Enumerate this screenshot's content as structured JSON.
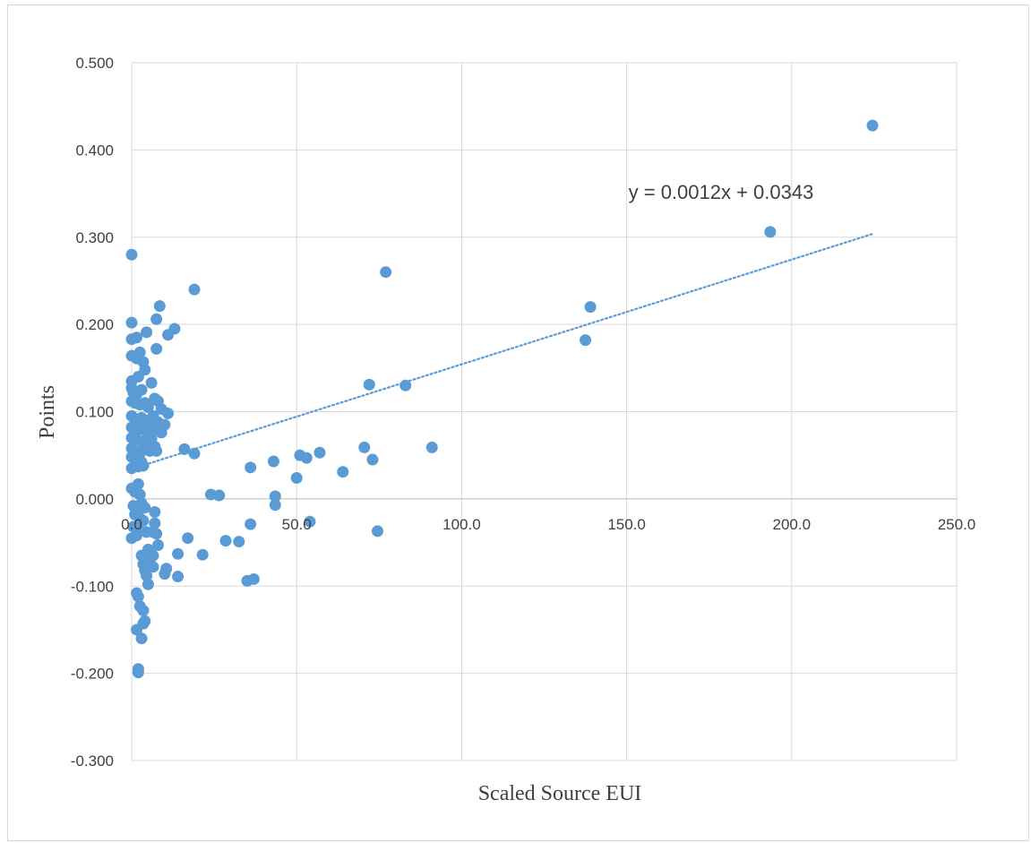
{
  "chart_data": {
    "type": "scatter",
    "title": "",
    "xlabel": "Scaled Source EUI",
    "ylabel": "Points",
    "xlim": [
      0,
      250
    ],
    "ylim": [
      -0.3,
      0.5
    ],
    "x_ticks": [
      0,
      50,
      100,
      150,
      200,
      250
    ],
    "x_tick_labels": [
      "0.0",
      "50.0",
      "100.0",
      "150.0",
      "200.0",
      "250.0"
    ],
    "y_ticks": [
      -0.3,
      -0.2,
      -0.1,
      0,
      0.1,
      0.2,
      0.3,
      0.4,
      0.5
    ],
    "y_tick_labels": [
      "-0.300",
      "-0.200",
      "-0.100",
      "0.000",
      "0.100",
      "0.200",
      "0.300",
      "0.400",
      "0.500"
    ],
    "grid": true,
    "legend": "none",
    "marker_color": "#5b9bd5",
    "trendline": {
      "type": "linear",
      "slope": 0.0012,
      "intercept": 0.0343,
      "x_range": [
        0,
        224.5
      ],
      "label": "y = 0.0012x + 0.0343",
      "style": "dotted",
      "color": "#5b9bd5"
    },
    "series": [
      {
        "points": [
          [
            224.5,
            0.428
          ],
          [
            193.5,
            0.306
          ],
          [
            139,
            0.22
          ],
          [
            137.5,
            0.182
          ],
          [
            77,
            0.26
          ],
          [
            72,
            0.131
          ],
          [
            83,
            0.13
          ],
          [
            91,
            0.059
          ],
          [
            70.5,
            0.059
          ],
          [
            73,
            0.045
          ],
          [
            57,
            0.053
          ],
          [
            53,
            0.047
          ],
          [
            51,
            0.05
          ],
          [
            50,
            0.024
          ],
          [
            64,
            0.031
          ],
          [
            43,
            0.043
          ],
          [
            36,
            0.036
          ],
          [
            43.5,
            0.003
          ],
          [
            43.5,
            -0.007
          ],
          [
            54,
            -0.026
          ],
          [
            74.5,
            -0.037
          ],
          [
            36,
            -0.029
          ],
          [
            32.5,
            -0.049
          ],
          [
            28.5,
            -0.048
          ],
          [
            17,
            -0.045
          ],
          [
            21.5,
            -0.064
          ],
          [
            14,
            -0.063
          ],
          [
            35,
            -0.094
          ],
          [
            37,
            -0.092
          ],
          [
            14,
            -0.089
          ],
          [
            10.5,
            -0.08
          ],
          [
            10,
            -0.086
          ],
          [
            24,
            0.005
          ],
          [
            26.5,
            0.004
          ],
          [
            19,
            0.052
          ],
          [
            16,
            0.057
          ],
          [
            19,
            0.24
          ],
          [
            13,
            0.195
          ],
          [
            11,
            0.188
          ],
          [
            8.5,
            0.221
          ],
          [
            7.5,
            0.206
          ],
          [
            7.5,
            0.172
          ],
          [
            4.5,
            0.191
          ],
          [
            3.5,
            0.157
          ],
          [
            4,
            0.148
          ],
          [
            0,
            0.28
          ],
          [
            0,
            0.202
          ],
          [
            0,
            0.183
          ],
          [
            1.5,
            0.185
          ],
          [
            2.5,
            0.168
          ],
          [
            0,
            0.164
          ],
          [
            1.5,
            0.161
          ],
          [
            0,
            0.135
          ],
          [
            2,
            0.14
          ],
          [
            0,
            0.127
          ],
          [
            0.5,
            0.122
          ],
          [
            1.5,
            0.12
          ],
          [
            3,
            0.125
          ],
          [
            6,
            0.133
          ],
          [
            0,
            0.112
          ],
          [
            1,
            0.11
          ],
          [
            2.5,
            0.108
          ],
          [
            4,
            0.11
          ],
          [
            5,
            0.105
          ],
          [
            7,
            0.115
          ],
          [
            8,
            0.112
          ],
          [
            9,
            0.103
          ],
          [
            11,
            0.098
          ],
          [
            0,
            0.095
          ],
          [
            1.5,
            0.09
          ],
          [
            3,
            0.093
          ],
          [
            5,
            0.09
          ],
          [
            6.5,
            0.095
          ],
          [
            8,
            0.088
          ],
          [
            10,
            0.085
          ],
          [
            0,
            0.082
          ],
          [
            1.5,
            0.078
          ],
          [
            3,
            0.08
          ],
          [
            4.5,
            0.077
          ],
          [
            6,
            0.082
          ],
          [
            7.5,
            0.079
          ],
          [
            9,
            0.076
          ],
          [
            0,
            0.07
          ],
          [
            1.5,
            0.068
          ],
          [
            3,
            0.066
          ],
          [
            4.5,
            0.063
          ],
          [
            6,
            0.069
          ],
          [
            7,
            0.06
          ],
          [
            0,
            0.058
          ],
          [
            1,
            0.055
          ],
          [
            2.5,
            0.052
          ],
          [
            4,
            0.057
          ],
          [
            5.5,
            0.055
          ],
          [
            7.5,
            0.055
          ],
          [
            0,
            0.048
          ],
          [
            1.5,
            0.045
          ],
          [
            3,
            0.042
          ],
          [
            0,
            0.035
          ],
          [
            2,
            0.037
          ],
          [
            3.5,
            0.038
          ],
          [
            2,
            0.017
          ],
          [
            0,
            0.012
          ],
          [
            1,
            0.008
          ],
          [
            2.5,
            0.005
          ],
          [
            0.5,
            -0.008
          ],
          [
            1.5,
            -0.012
          ],
          [
            3,
            -0.005
          ],
          [
            4,
            -0.01
          ],
          [
            1,
            -0.018
          ],
          [
            2.5,
            -0.022
          ],
          [
            3.5,
            -0.025
          ],
          [
            7,
            -0.015
          ],
          [
            0.5,
            -0.032
          ],
          [
            2,
            -0.035
          ],
          [
            4.5,
            -0.038
          ],
          [
            7,
            -0.028
          ],
          [
            6.5,
            -0.038
          ],
          [
            0,
            -0.045
          ],
          [
            1.5,
            -0.042
          ],
          [
            7.5,
            -0.04
          ],
          [
            5,
            -0.058
          ],
          [
            8,
            -0.053
          ],
          [
            3,
            -0.065
          ],
          [
            6.5,
            -0.065
          ],
          [
            5.5,
            -0.07
          ],
          [
            3.5,
            -0.075
          ],
          [
            4,
            -0.082
          ],
          [
            6.5,
            -0.078
          ],
          [
            4.5,
            -0.088
          ],
          [
            5,
            -0.098
          ],
          [
            1.5,
            -0.108
          ],
          [
            2,
            -0.112
          ],
          [
            2.5,
            -0.123
          ],
          [
            3.5,
            -0.128
          ],
          [
            4,
            -0.14
          ],
          [
            3.5,
            -0.143
          ],
          [
            1.5,
            -0.15
          ],
          [
            3,
            -0.16
          ],
          [
            2,
            -0.195
          ],
          [
            2,
            -0.199
          ]
        ]
      }
    ]
  }
}
